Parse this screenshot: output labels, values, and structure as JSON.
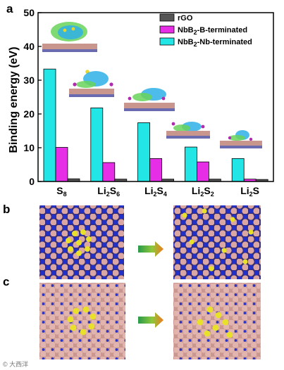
{
  "panels": {
    "a": "a",
    "b": "b",
    "c": "c"
  },
  "chart_data": {
    "type": "bar",
    "categories": [
      {
        "base": "S",
        "parts": [
          [
            "S",
            ""
          ],
          [
            "8",
            "sub"
          ]
        ]
      },
      {
        "base": "Li2S6",
        "parts": [
          [
            "Li",
            ""
          ],
          [
            "2",
            "sub"
          ],
          [
            "S",
            ""
          ],
          [
            "6",
            "sub"
          ]
        ]
      },
      {
        "base": "Li2S4",
        "parts": [
          [
            "Li",
            ""
          ],
          [
            "2",
            "sub"
          ],
          [
            "S",
            ""
          ],
          [
            "4",
            "sub"
          ]
        ]
      },
      {
        "base": "Li2S2",
        "parts": [
          [
            "Li",
            ""
          ],
          [
            "2",
            "sub"
          ],
          [
            "S",
            ""
          ],
          [
            "2",
            "sub"
          ]
        ]
      },
      {
        "base": "Li2S",
        "parts": [
          [
            "Li",
            ""
          ],
          [
            "2",
            "sub"
          ],
          [
            "S",
            ""
          ]
        ]
      }
    ],
    "series": [
      {
        "name_parts": [
          [
            "rGO",
            ""
          ]
        ],
        "color": "#555555",
        "values": [
          0.8,
          0.7,
          0.7,
          0.7,
          0.6
        ]
      },
      {
        "name_parts": [
          [
            "NbB",
            ""
          ],
          [
            "2",
            "sub"
          ],
          [
            "-B-terminated",
            ""
          ]
        ],
        "color": "#e62ee6",
        "values": [
          10.1,
          5.6,
          6.8,
          5.8,
          0.7
        ]
      },
      {
        "name_parts": [
          [
            "NbB",
            ""
          ],
          [
            "2",
            "sub"
          ],
          [
            "-Nb-terminated",
            ""
          ]
        ],
        "color": "#22e6e6",
        "values": [
          33.3,
          21.8,
          17.4,
          10.2,
          6.8
        ]
      }
    ],
    "ylabel": "Binding energy (eV)",
    "ylim": [
      0,
      50
    ],
    "yticks": [
      0,
      10,
      20,
      30,
      40,
      50
    ],
    "legend_position": "top-right",
    "grid": false
  },
  "watermark": "© 大西洋"
}
